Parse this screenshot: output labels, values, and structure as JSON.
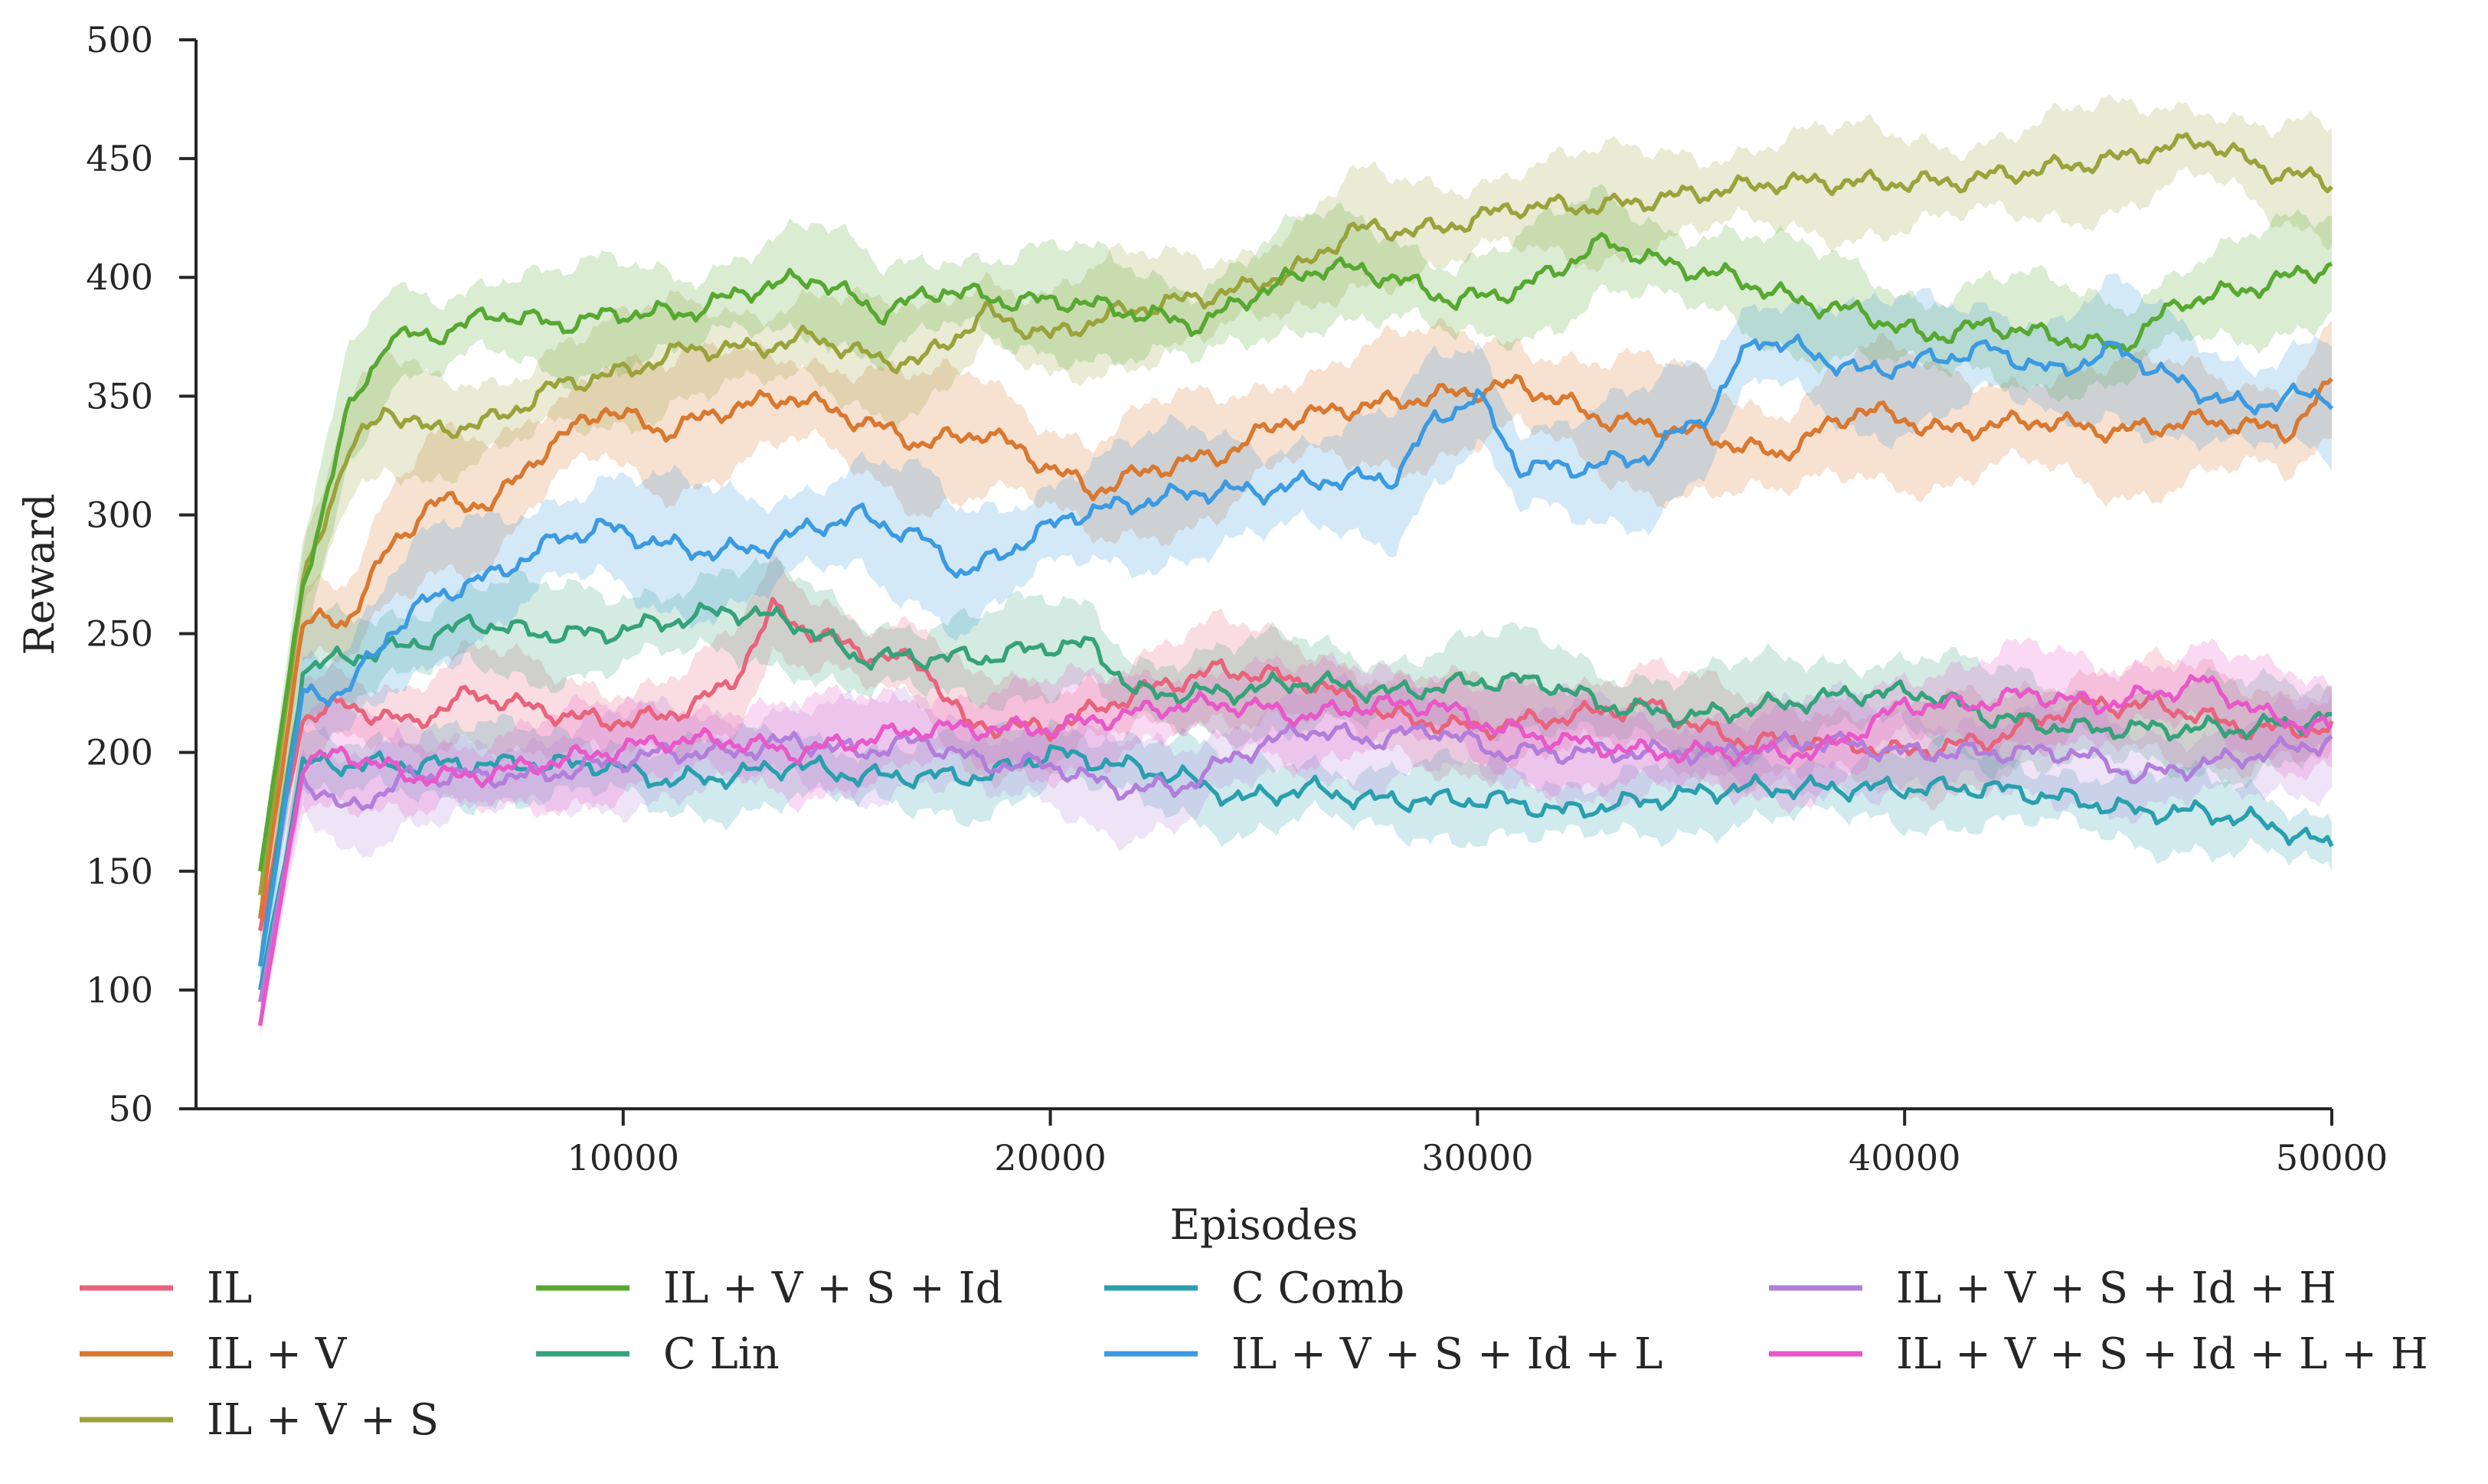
{
  "chart_data": {
    "type": "line",
    "title": "",
    "xlabel": "Episodes",
    "ylabel": "Reward",
    "xlim": [
      0,
      50000
    ],
    "ylim": [
      50,
      500
    ],
    "xticks": [
      10000,
      20000,
      30000,
      40000,
      50000
    ],
    "yticks": [
      50,
      100,
      150,
      200,
      250,
      300,
      350,
      400,
      450,
      500
    ],
    "grid": false,
    "legend_position": "bottom",
    "legend_columns": 4,
    "series": [
      {
        "name": "IL",
        "color": "#e8637b",
        "band": 22,
        "x": [
          1500,
          2500,
          3500,
          5000,
          6500,
          8000,
          9500,
          11000,
          12500,
          13500,
          14500,
          16000,
          17000,
          18000,
          20000,
          22000,
          24000,
          26000,
          28000,
          30000,
          32000,
          34000,
          36000,
          38000,
          40000,
          42000,
          44000,
          46000,
          48000,
          50000
        ],
        "y": [
          125,
          215,
          220,
          212,
          225,
          218,
          213,
          215,
          228,
          260,
          250,
          240,
          238,
          212,
          210,
          225,
          235,
          230,
          215,
          210,
          215,
          220,
          205,
          205,
          200,
          205,
          220,
          220,
          210,
          210
        ]
      },
      {
        "name": "IL + V",
        "color": "#d9782f",
        "band": 30,
        "x": [
          1500,
          2500,
          3500,
          4500,
          5500,
          7000,
          8000,
          9500,
          11000,
          12500,
          14000,
          15500,
          17000,
          18500,
          20000,
          21000,
          22500,
          24000,
          25500,
          27000,
          29000,
          31000,
          33000,
          35000,
          37000,
          39000,
          41000,
          43000,
          45000,
          47000,
          49000,
          50000
        ],
        "y": [
          130,
          255,
          255,
          285,
          305,
          305,
          325,
          345,
          335,
          345,
          350,
          340,
          330,
          335,
          320,
          310,
          320,
          325,
          340,
          345,
          350,
          355,
          340,
          335,
          325,
          345,
          335,
          340,
          335,
          340,
          335,
          355
        ]
      },
      {
        "name": "IL + V + S",
        "color": "#9aa33b",
        "band": 25,
        "x": [
          1500,
          2500,
          3500,
          4500,
          5500,
          7000,
          8500,
          10000,
          11500,
          13000,
          14500,
          16000,
          17000,
          18500,
          20000,
          21500,
          23000,
          24500,
          26000,
          27000,
          29000,
          31000,
          33000,
          35000,
          37000,
          39000,
          41000,
          43000,
          45000,
          47000,
          48500,
          50000
        ],
        "y": [
          140,
          270,
          325,
          345,
          335,
          340,
          355,
          360,
          370,
          370,
          375,
          365,
          365,
          385,
          375,
          385,
          390,
          395,
          405,
          420,
          420,
          430,
          430,
          435,
          440,
          440,
          440,
          445,
          450,
          458,
          445,
          440
        ]
      },
      {
        "name": "IL + V + S + Id",
        "color": "#57a831",
        "band": 25,
        "x": [
          1500,
          2500,
          3500,
          4500,
          5500,
          7000,
          8500,
          10000,
          11500,
          13000,
          14500,
          16000,
          17500,
          19000,
          20500,
          22000,
          23500,
          25000,
          26500,
          28000,
          29500,
          31000,
          33000,
          34500,
          36000,
          37500,
          39000,
          40500,
          42000,
          43500,
          45000,
          46500,
          48000,
          49000,
          50000
        ],
        "y": [
          150,
          270,
          340,
          375,
          375,
          385,
          380,
          385,
          385,
          395,
          400,
          385,
          395,
          390,
          390,
          385,
          380,
          395,
          405,
          400,
          390,
          395,
          415,
          405,
          400,
          390,
          385,
          375,
          380,
          375,
          370,
          390,
          395,
          400,
          405
        ]
      },
      {
        "name": "C Lin",
        "color": "#35a27a",
        "band": 22,
        "x": [
          1500,
          2500,
          3500,
          5000,
          6500,
          8000,
          9500,
          11000,
          12500,
          14000,
          15500,
          17000,
          18500,
          20000,
          21000,
          22000,
          24000,
          26000,
          28000,
          30000,
          31500,
          33000,
          35000,
          37000,
          39000,
          40500,
          42000,
          44000,
          46000,
          48000,
          50000
        ],
        "y": [
          110,
          235,
          240,
          245,
          255,
          250,
          250,
          255,
          260,
          255,
          240,
          240,
          240,
          245,
          245,
          225,
          225,
          230,
          225,
          230,
          230,
          220,
          215,
          220,
          225,
          225,
          215,
          210,
          210,
          210,
          215
        ]
      },
      {
        "name": "C Comb",
        "color": "#2a9fae",
        "band": 18,
        "x": [
          1500,
          2500,
          3500,
          5000,
          6500,
          8000,
          9500,
          11000,
          12500,
          14000,
          15500,
          17000,
          18500,
          20000,
          21500,
          23000,
          24500,
          26000,
          27500,
          29000,
          30500,
          32000,
          34000,
          36000,
          38000,
          40000,
          42000,
          44000,
          45500,
          47000,
          48500,
          50000
        ],
        "y": [
          100,
          195,
          195,
          195,
          195,
          195,
          195,
          188,
          190,
          195,
          190,
          190,
          190,
          200,
          195,
          190,
          180,
          185,
          180,
          180,
          180,
          175,
          180,
          185,
          185,
          185,
          185,
          180,
          175,
          175,
          170,
          160
        ]
      },
      {
        "name": "IL + V + S + Id + L",
        "color": "#3b9ae1",
        "band": 30,
        "x": [
          1500,
          2500,
          3500,
          4500,
          5500,
          7000,
          8500,
          9500,
          10500,
          11500,
          13000,
          14500,
          15500,
          17000,
          18000,
          19000,
          20500,
          22000,
          23500,
          25000,
          26500,
          28000,
          29000,
          30000,
          31000,
          32500,
          34000,
          35500,
          36500,
          37500,
          39000,
          40500,
          42000,
          43500,
          45000,
          46500,
          48000,
          49000,
          50000
        ],
        "y": [
          110,
          225,
          225,
          250,
          265,
          275,
          290,
          295,
          290,
          285,
          285,
          295,
          300,
          290,
          275,
          285,
          300,
          305,
          310,
          310,
          315,
          315,
          340,
          350,
          320,
          320,
          325,
          345,
          375,
          370,
          360,
          365,
          370,
          360,
          370,
          355,
          345,
          350,
          350
        ]
      },
      {
        "name": "IL + V + S + Id + H",
        "color": "#b27edb",
        "band": 22,
        "x": [
          1500,
          2500,
          3500,
          5000,
          6500,
          8000,
          9500,
          11000,
          12500,
          14000,
          15500,
          17000,
          18500,
          20000,
          21500,
          23000,
          24500,
          26000,
          27500,
          29000,
          30500,
          32000,
          34000,
          36000,
          38000,
          40000,
          42000,
          44000,
          45500,
          47000,
          48500,
          50000
        ],
        "y": [
          95,
          190,
          175,
          190,
          190,
          190,
          195,
          200,
          200,
          205,
          200,
          205,
          195,
          195,
          185,
          185,
          200,
          210,
          205,
          210,
          200,
          200,
          200,
          200,
          205,
          200,
          200,
          200,
          190,
          195,
          200,
          205
        ]
      },
      {
        "name": "IL + V + S + Id + L + H",
        "color": "#e858c9",
        "band": 22,
        "x": [
          1500,
          2500,
          3500,
          5000,
          6500,
          8000,
          9500,
          11000,
          12500,
          14000,
          15500,
          17000,
          18500,
          20000,
          21500,
          23000,
          24500,
          26000,
          27500,
          29000,
          30500,
          32000,
          34000,
          36000,
          38000,
          40000,
          41500,
          43000,
          44500,
          46000,
          47000,
          48500,
          50000
        ],
        "y": [
          85,
          195,
          200,
          190,
          190,
          195,
          200,
          205,
          205,
          200,
          205,
          210,
          210,
          210,
          215,
          220,
          220,
          215,
          220,
          220,
          210,
          205,
          200,
          200,
          200,
          220,
          220,
          225,
          220,
          225,
          230,
          215,
          210
        ]
      }
    ]
  }
}
